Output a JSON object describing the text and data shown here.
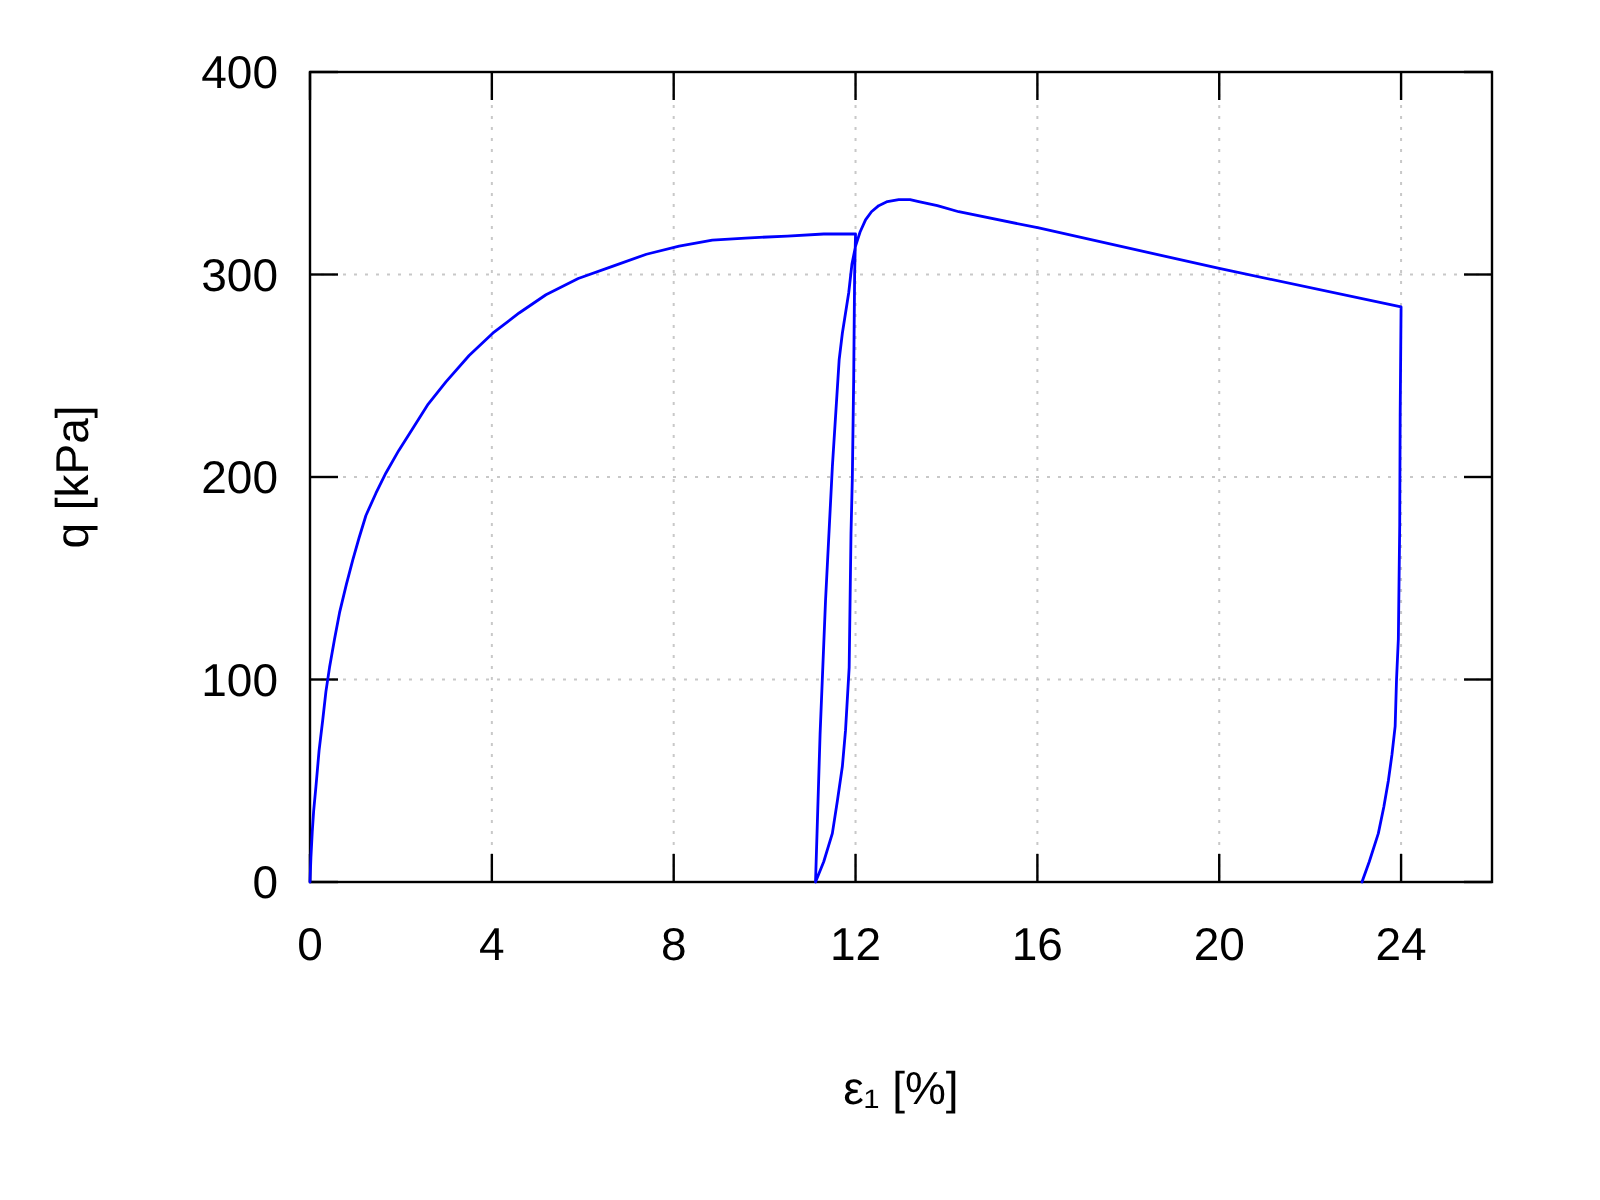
{
  "chart_data": {
    "type": "line",
    "xlabel": "ε₁ [%]",
    "ylabel": "q [kPa]",
    "xlim": [
      0,
      26
    ],
    "ylim": [
      0,
      400
    ],
    "xticks": [
      0,
      4,
      8,
      12,
      16,
      20,
      24
    ],
    "yticks": [
      0,
      100,
      200,
      300,
      400
    ],
    "grid": true,
    "series": [
      {
        "color": "#0000ff",
        "x": [
          0,
          0.02,
          0.05,
          0.08,
          0.13,
          0.2,
          0.28,
          0.35,
          0.43,
          0.54,
          0.65,
          0.8,
          0.94,
          1.08,
          1.23,
          1.45,
          1.67,
          1.95,
          2.26,
          2.6,
          2.99,
          3.5,
          4.02,
          4.6,
          5.19,
          5.9,
          6.65,
          7.4,
          8.12,
          8.85,
          9.58,
          10.5,
          11.3,
          12.0,
          11.98,
          11.96,
          11.93,
          11.9,
          11.86,
          11.78,
          11.71,
          11.6,
          11.49,
          11.3,
          11.12,
          11.22,
          11.34,
          11.49,
          11.64,
          11.71,
          11.85,
          11.92,
          12.0,
          12.1,
          12.22,
          12.35,
          12.51,
          12.7,
          12.95,
          13.2,
          13.39,
          13.8,
          14.27,
          16.03,
          20.0,
          24.0,
          23.98,
          23.97,
          23.94,
          23.9,
          23.87,
          23.8,
          23.72,
          23.62,
          23.5,
          23.3,
          23.14
        ],
        "values": [
          0,
          12,
          25,
          35,
          47,
          65,
          80,
          94,
          106,
          120,
          133,
          147,
          159,
          170,
          181,
          192,
          202,
          213,
          224,
          236,
          247,
          260,
          271,
          281,
          290,
          298,
          304,
          310,
          314,
          317,
          318,
          319,
          320,
          320,
          300,
          250,
          200,
          172,
          106,
          75,
          57,
          40,
          24,
          10,
          0,
          73,
          139,
          205,
          258,
          271,
          291,
          305,
          314,
          321,
          327,
          331,
          334,
          336,
          337,
          337,
          336,
          334,
          331,
          323,
          303,
          284,
          230,
          176,
          120,
          100,
          77,
          63,
          50,
          37,
          24,
          10,
          0
        ]
      }
    ]
  }
}
